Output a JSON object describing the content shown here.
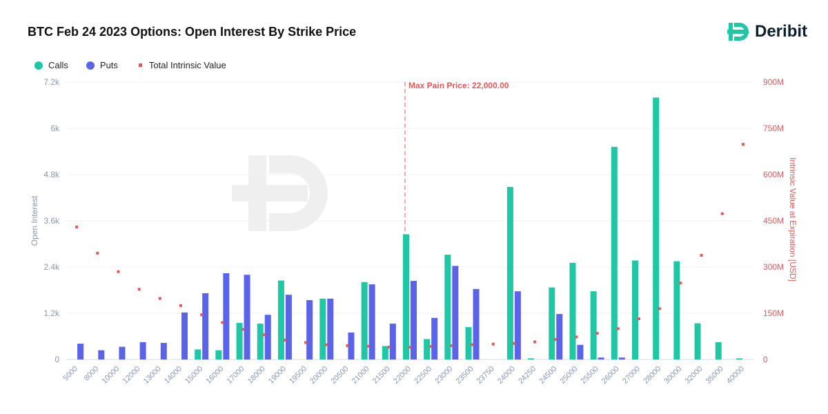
{
  "brand": {
    "name": "Deribit"
  },
  "chart_data": {
    "type": "bar",
    "title": "BTC Feb 24 2023 Options: Open Interest By Strike Price",
    "ylabel": "Open Interest",
    "y2label": "Intrinsic Value at Expiration [USD]",
    "ylim": [
      0,
      7200
    ],
    "y2lim": [
      0,
      900000000
    ],
    "yticks": [
      "0",
      "1.2k",
      "2.4k",
      "3.6k",
      "4.8k",
      "6k",
      "7.2k"
    ],
    "y2ticks": [
      "0",
      "150M",
      "300M",
      "450M",
      "600M",
      "750M",
      "900M"
    ],
    "legend_position": "top-left",
    "categories": [
      "5000",
      "8000",
      "10000",
      "12000",
      "13000",
      "14000",
      "15000",
      "16000",
      "17000",
      "18000",
      "19000",
      "19500",
      "20000",
      "20500",
      "21000",
      "21500",
      "22000",
      "22500",
      "23000",
      "23500",
      "23750",
      "24000",
      "24250",
      "24500",
      "25000",
      "25500",
      "26000",
      "27000",
      "28000",
      "30000",
      "32000",
      "35000",
      "40000"
    ],
    "series": [
      {
        "name": "Calls",
        "type": "bar",
        "color": "#1fc7a4",
        "values": [
          0,
          0,
          0,
          0,
          0,
          0,
          260,
          240,
          950,
          930,
          2050,
          0,
          1580,
          0,
          2010,
          350,
          3250,
          530,
          2720,
          840,
          0,
          4480,
          30,
          1870,
          2510,
          1770,
          5520,
          2570,
          6800,
          2550,
          940,
          450,
          30
        ]
      },
      {
        "name": "Puts",
        "type": "bar",
        "color": "#5b63e8",
        "values": [
          410,
          240,
          330,
          450,
          430,
          1220,
          1720,
          2240,
          2200,
          1160,
          1680,
          1540,
          1580,
          700,
          1950,
          930,
          2040,
          1080,
          2430,
          1830,
          0,
          1770,
          0,
          1180,
          380,
          50,
          50,
          0,
          0,
          0,
          0,
          0,
          0
        ]
      },
      {
        "name": "Total Intrinsic Value",
        "type": "scatter",
        "color": "#e05a5a",
        "values": [
          430000000,
          345000000,
          285000000,
          228000000,
          198000000,
          175000000,
          145000000,
          120000000,
          98000000,
          80000000,
          63000000,
          55000000,
          48000000,
          45000000,
          43000000,
          40000000,
          40000000,
          42000000,
          45000000,
          48000000,
          50000000,
          52000000,
          57000000,
          65000000,
          73000000,
          85000000,
          100000000,
          132000000,
          165000000,
          248000000,
          338000000,
          473000000,
          698000000
        ]
      }
    ],
    "annotations": [
      {
        "label": "Max Pain Price: 22,000.00",
        "category": "22000"
      }
    ]
  }
}
